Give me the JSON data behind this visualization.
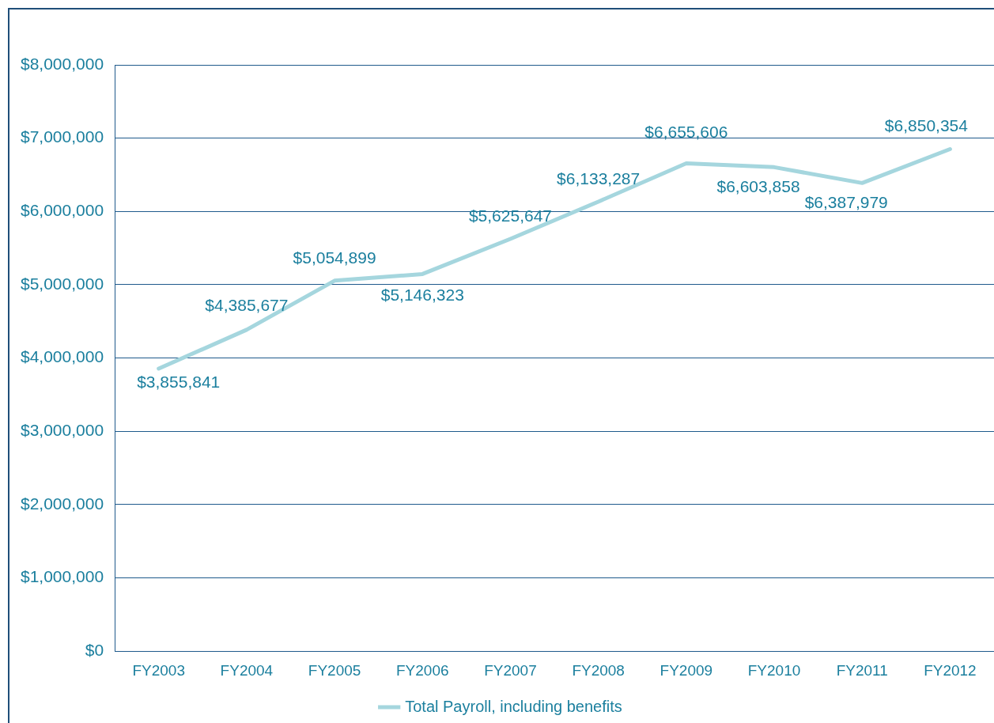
{
  "chart_data": {
    "type": "line",
    "categories": [
      "FY2003",
      "FY2004",
      "FY2005",
      "FY2006",
      "FY2007",
      "FY2008",
      "FY2009",
      "FY2010",
      "FY2011",
      "FY2012"
    ],
    "series": [
      {
        "name": "Total Payroll, including benefits",
        "color": "#a5d6de",
        "values": [
          3855841,
          4385677,
          5054899,
          5146323,
          5625647,
          6133287,
          6655606,
          6603858,
          6387979,
          6850354
        ],
        "value_labels": [
          "$3,855,841",
          "$4,385,677",
          "$5,054,899",
          "$5,146,323",
          "$5,625,647",
          "$6,133,287",
          "$6,655,606",
          "$6,603,858",
          "$6,387,979",
          "$6,850,354"
        ]
      }
    ],
    "ylim": [
      0,
      8000000
    ],
    "yticks": [
      {
        "value": 0,
        "label": "$0"
      },
      {
        "value": 1000000,
        "label": "$1,000,000"
      },
      {
        "value": 2000000,
        "label": "$2,000,000"
      },
      {
        "value": 3000000,
        "label": "$3,000,000"
      },
      {
        "value": 4000000,
        "label": "$4,000,000"
      },
      {
        "value": 5000000,
        "label": "$5,000,000"
      },
      {
        "value": 6000000,
        "label": "$6,000,000"
      },
      {
        "value": 7000000,
        "label": "$7,000,000"
      },
      {
        "value": 8000000,
        "label": "$8,000,000"
      }
    ],
    "grid": "y",
    "legend": "bottom",
    "marker": "none",
    "line_style": "solid"
  }
}
